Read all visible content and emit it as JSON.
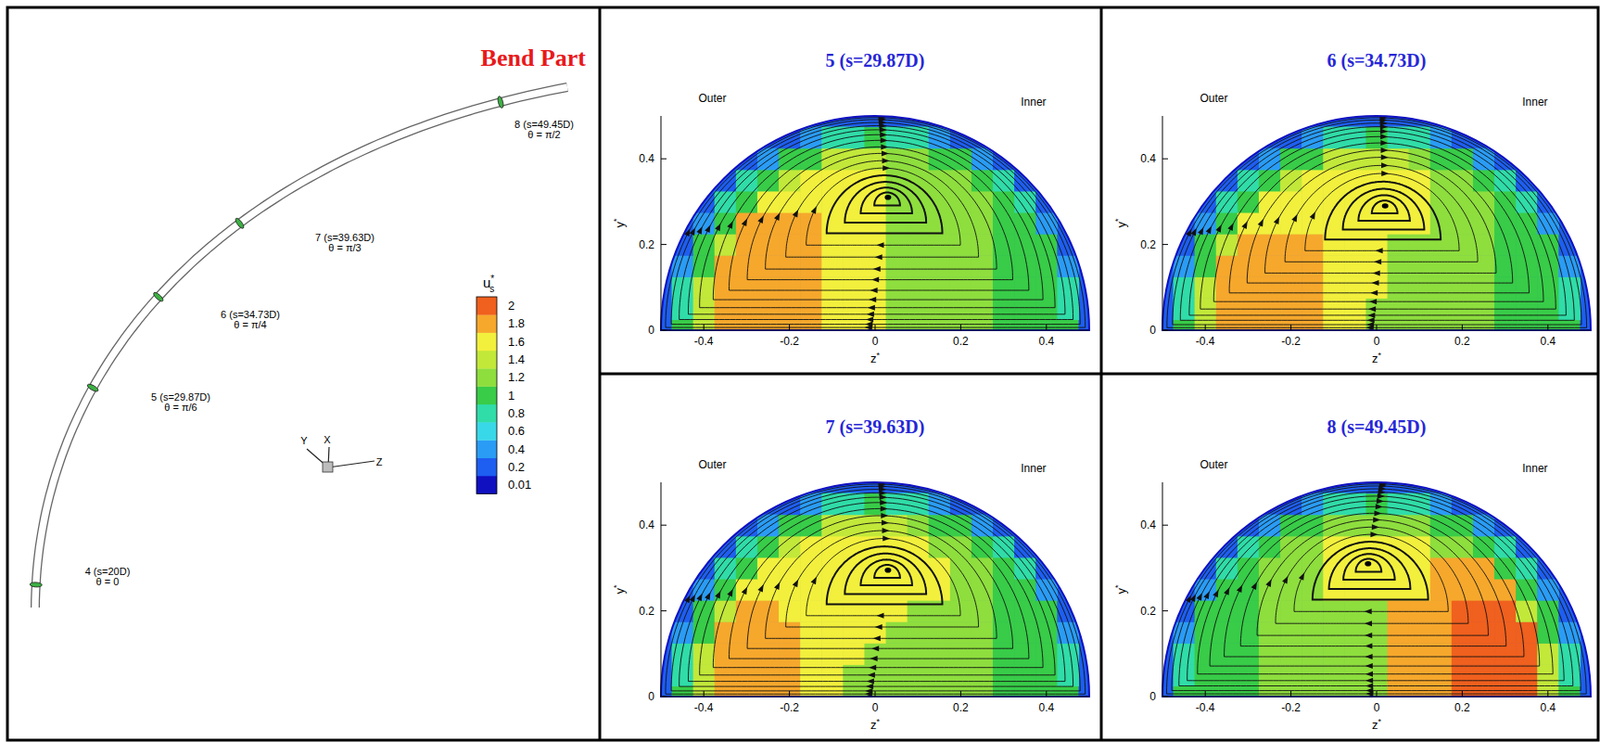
{
  "bend_diagram": {
    "title": "Bend Part",
    "stations": [
      {
        "label": "4 (s=20D)",
        "angle": "θ = 0"
      },
      {
        "label": "5 (s=29.87D)",
        "angle": "θ = π/6"
      },
      {
        "label": "6 (s=34.73D)",
        "angle": "θ = π/4"
      },
      {
        "label": "7 (s=39.63D)",
        "angle": "θ = π/3"
      },
      {
        "label": "8 (s=49.45D)",
        "angle": "θ = π/2"
      }
    ],
    "axis_labels": [
      "Y",
      "X",
      "Z"
    ]
  },
  "colorbar": {
    "title": "u*s",
    "levels": [
      0.01,
      0.2,
      0.4,
      0.6,
      0.8,
      1,
      1.2,
      1.4,
      1.6,
      1.8,
      2
    ],
    "colors": [
      "#1010c0",
      "#1e5ef0",
      "#2a9cf5",
      "#38d8e8",
      "#30dca8",
      "#38cc48",
      "#8ede3e",
      "#c2e83a",
      "#f2f03c",
      "#f6a82c",
      "#f0601e"
    ]
  },
  "chart_data": [
    {
      "type": "contour",
      "title": "5 (s=29.87D)",
      "xlabel": "z*",
      "ylabel": "y*",
      "annotations": [
        "Outer",
        "Inner"
      ],
      "xlim": [
        -0.5,
        0.5
      ],
      "ylim": [
        0,
        0.5
      ],
      "xticks": [
        -0.4,
        -0.2,
        0,
        0.2,
        0.4
      ],
      "yticks": [
        0,
        0.2,
        0.4
      ],
      "vortex_center": {
        "z": 0.03,
        "y": 0.31
      },
      "x": [
        -0.5,
        -0.45,
        -0.4,
        -0.35,
        -0.3,
        -0.25,
        -0.2,
        -0.15,
        -0.1,
        -0.05,
        0,
        0.05,
        0.1,
        0.15,
        0.2,
        0.25,
        0.3,
        0.35,
        0.4,
        0.45,
        0.5
      ],
      "y": [
        0,
        0.05,
        0.1,
        0.15,
        0.2,
        0.25,
        0.3,
        0.35,
        0.4,
        0.45,
        0.5
      ],
      "cells": [
        [
          0.2,
          1.1,
          1.4,
          1.8,
          1.8,
          1.8,
          1.8,
          1.8,
          1.6,
          1.6,
          1.6,
          1.3,
          1.3,
          1.3,
          1.3,
          1.3,
          1.1,
          1.1,
          1.1,
          1.1,
          0.2
        ],
        [
          null,
          0.8,
          1.4,
          1.8,
          1.8,
          1.8,
          1.8,
          1.8,
          1.6,
          1.6,
          1.6,
          1.3,
          1.3,
          1.3,
          1.3,
          1.3,
          1.1,
          1.1,
          1.1,
          0.8,
          null
        ],
        [
          null,
          0.8,
          1.4,
          1.8,
          1.8,
          1.8,
          1.8,
          1.8,
          1.6,
          1.6,
          1.6,
          1.3,
          1.3,
          1.3,
          1.3,
          1.3,
          1.1,
          1.1,
          1.1,
          0.8,
          null
        ],
        [
          null,
          0.5,
          1.1,
          1.8,
          1.8,
          1.8,
          1.8,
          1.8,
          1.6,
          1.6,
          1.6,
          1.3,
          1.3,
          1.3,
          1.3,
          1.3,
          1.1,
          1.1,
          1.1,
          0.5,
          null
        ],
        [
          null,
          0.2,
          1.1,
          1.4,
          1.8,
          1.8,
          1.8,
          1.8,
          1.6,
          1.6,
          1.6,
          1.3,
          1.3,
          1.3,
          1.3,
          1.3,
          1.1,
          1.1,
          1.1,
          0.2,
          null
        ],
        [
          null,
          null,
          0.5,
          1.1,
          1.8,
          1.8,
          1.8,
          1.8,
          1.6,
          1.6,
          1.6,
          1.3,
          1.3,
          1.3,
          1.3,
          1.3,
          1.1,
          1.1,
          0.5,
          null,
          null
        ],
        [
          null,
          null,
          0.2,
          0.8,
          1.1,
          1.6,
          1.6,
          1.6,
          1.6,
          1.6,
          1.6,
          1.3,
          1.3,
          1.3,
          1.3,
          1.3,
          1.1,
          0.8,
          0.2,
          null,
          null
        ],
        [
          null,
          null,
          null,
          0.2,
          0.8,
          1.1,
          1.4,
          1.6,
          1.6,
          1.6,
          1.6,
          1.3,
          1.3,
          1.3,
          1.3,
          1.1,
          0.8,
          0.2,
          null,
          null,
          null
        ],
        [
          null,
          null,
          null,
          null,
          0.2,
          0.5,
          1.1,
          1.1,
          1.4,
          1.4,
          1.4,
          1.3,
          1.3,
          1.1,
          1.1,
          0.5,
          0.2,
          null,
          null,
          null,
          null
        ],
        [
          null,
          null,
          null,
          null,
          null,
          null,
          0.2,
          0.5,
          0.8,
          0.8,
          1.1,
          0.8,
          0.8,
          0.5,
          0.2,
          null,
          null,
          null,
          null,
          null,
          null
        ],
        [
          null,
          null,
          null,
          null,
          null,
          null,
          null,
          null,
          null,
          null,
          0.2,
          null,
          null,
          null,
          null,
          null,
          null,
          null,
          null,
          null,
          null
        ]
      ]
    },
    {
      "type": "contour",
      "title": "6 (s=34.73D)",
      "xlabel": "z*",
      "ylabel": "y*",
      "annotations": [
        "Outer",
        "Inner"
      ],
      "xlim": [
        -0.5,
        0.5
      ],
      "ylim": [
        0,
        0.5
      ],
      "xticks": [
        -0.4,
        -0.2,
        0,
        0.2,
        0.4
      ],
      "yticks": [
        0,
        0.2,
        0.4
      ],
      "vortex_center": {
        "z": 0.02,
        "y": 0.29
      },
      "x": [
        -0.5,
        -0.45,
        -0.4,
        -0.35,
        -0.3,
        -0.25,
        -0.2,
        -0.15,
        -0.1,
        -0.05,
        0,
        0.05,
        0.1,
        0.15,
        0.2,
        0.25,
        0.3,
        0.35,
        0.4,
        0.45,
        0.5
      ],
      "y": [
        0,
        0.05,
        0.1,
        0.15,
        0.2,
        0.25,
        0.3,
        0.35,
        0.4,
        0.45,
        0.5
      ],
      "cells": [
        [
          0.2,
          1.1,
          1.4,
          1.8,
          1.8,
          1.8,
          1.8,
          1.8,
          1.6,
          1.6,
          1.3,
          1.3,
          1.3,
          1.3,
          1.3,
          1.3,
          1.1,
          1.1,
          1.1,
          1.1,
          0.2
        ],
        [
          null,
          0.8,
          1.4,
          1.8,
          1.8,
          1.8,
          1.8,
          1.8,
          1.6,
          1.6,
          1.3,
          1.3,
          1.3,
          1.3,
          1.3,
          1.3,
          1.1,
          1.1,
          1.1,
          0.8,
          null
        ],
        [
          null,
          0.8,
          1.4,
          1.8,
          1.8,
          1.8,
          1.8,
          1.8,
          1.6,
          1.6,
          1.6,
          1.3,
          1.3,
          1.3,
          1.3,
          1.3,
          1.1,
          1.1,
          1.1,
          0.8,
          null
        ],
        [
          null,
          0.5,
          1.1,
          1.8,
          1.8,
          1.8,
          1.8,
          1.8,
          1.6,
          1.6,
          1.6,
          1.3,
          1.3,
          1.3,
          1.3,
          1.3,
          1.1,
          1.1,
          1.1,
          0.5,
          null
        ],
        [
          null,
          0.2,
          1.1,
          1.4,
          1.8,
          1.8,
          1.8,
          1.8,
          1.6,
          1.6,
          1.6,
          1.3,
          1.3,
          1.3,
          1.3,
          1.3,
          1.1,
          1.1,
          1.1,
          0.2,
          null
        ],
        [
          null,
          null,
          0.5,
          1.1,
          1.6,
          1.6,
          1.6,
          1.6,
          1.6,
          1.6,
          1.6,
          1.6,
          1.6,
          1.3,
          1.3,
          1.3,
          1.1,
          1.1,
          0.5,
          null,
          null
        ],
        [
          null,
          null,
          0.2,
          0.8,
          1.1,
          1.6,
          1.6,
          1.6,
          1.6,
          1.6,
          1.6,
          1.6,
          1.6,
          1.3,
          1.3,
          1.3,
          1.1,
          0.8,
          0.2,
          null,
          null
        ],
        [
          null,
          null,
          null,
          0.2,
          0.8,
          1.1,
          1.4,
          1.6,
          1.6,
          1.6,
          1.6,
          1.6,
          1.6,
          1.3,
          1.3,
          1.1,
          0.8,
          0.2,
          null,
          null,
          null
        ],
        [
          null,
          null,
          null,
          null,
          0.2,
          0.5,
          1.1,
          1.1,
          1.4,
          1.4,
          1.4,
          1.4,
          1.3,
          1.1,
          1.1,
          0.5,
          0.2,
          null,
          null,
          null,
          null
        ],
        [
          null,
          null,
          null,
          null,
          null,
          null,
          0.2,
          0.5,
          0.8,
          0.8,
          1.1,
          0.8,
          0.8,
          0.5,
          0.2,
          null,
          null,
          null,
          null,
          null,
          null
        ],
        [
          null,
          null,
          null,
          null,
          null,
          null,
          null,
          null,
          null,
          null,
          0.2,
          null,
          null,
          null,
          null,
          null,
          null,
          null,
          null,
          null,
          null
        ]
      ]
    },
    {
      "type": "contour",
      "title": "7 (s=39.63D)",
      "xlabel": "z*",
      "ylabel": "y*",
      "annotations": [
        "Outer",
        "Inner"
      ],
      "xlim": [
        -0.5,
        0.5
      ],
      "ylim": [
        0,
        0.5
      ],
      "xticks": [
        -0.4,
        -0.2,
        0,
        0.2,
        0.4
      ],
      "yticks": [
        0,
        0.2,
        0.4
      ],
      "vortex_center": {
        "z": 0.03,
        "y": 0.295
      },
      "x": [
        -0.5,
        -0.45,
        -0.4,
        -0.35,
        -0.3,
        -0.25,
        -0.2,
        -0.15,
        -0.1,
        -0.05,
        0,
        0.05,
        0.1,
        0.15,
        0.2,
        0.25,
        0.3,
        0.35,
        0.4,
        0.45,
        0.5
      ],
      "y": [
        0,
        0.05,
        0.1,
        0.15,
        0.2,
        0.25,
        0.3,
        0.35,
        0.4,
        0.45,
        0.5
      ],
      "cells": [
        [
          0.2,
          1.1,
          1.4,
          1.8,
          1.8,
          1.8,
          1.8,
          1.6,
          1.6,
          1.3,
          1.3,
          1.3,
          1.3,
          1.3,
          1.3,
          1.3,
          1.1,
          1.1,
          1.1,
          1.1,
          0.2
        ],
        [
          null,
          0.8,
          1.4,
          1.8,
          1.8,
          1.8,
          1.8,
          1.6,
          1.6,
          1.3,
          1.3,
          1.3,
          1.3,
          1.3,
          1.3,
          1.3,
          1.1,
          1.1,
          1.1,
          0.8,
          null
        ],
        [
          null,
          0.8,
          1.4,
          1.8,
          1.8,
          1.8,
          1.8,
          1.6,
          1.6,
          1.6,
          1.3,
          1.3,
          1.3,
          1.3,
          1.3,
          1.3,
          1.1,
          1.1,
          1.1,
          0.8,
          null
        ],
        [
          null,
          0.5,
          1.1,
          1.8,
          1.8,
          1.8,
          1.8,
          1.6,
          1.6,
          1.6,
          1.6,
          1.3,
          1.3,
          1.3,
          1.3,
          1.3,
          1.1,
          1.1,
          1.1,
          0.5,
          null
        ],
        [
          null,
          0.2,
          1.1,
          1.4,
          1.8,
          1.8,
          1.6,
          1.6,
          1.6,
          1.6,
          1.6,
          1.6,
          1.3,
          1.3,
          1.3,
          1.3,
          1.1,
          1.1,
          1.1,
          0.2,
          null
        ],
        [
          null,
          null,
          0.5,
          1.1,
          1.6,
          1.6,
          1.6,
          1.6,
          1.6,
          1.6,
          1.6,
          1.6,
          1.6,
          1.6,
          1.3,
          1.3,
          1.1,
          1.1,
          0.5,
          null,
          null
        ],
        [
          null,
          null,
          0.2,
          0.8,
          1.1,
          1.6,
          1.6,
          1.6,
          1.6,
          1.6,
          1.6,
          1.6,
          1.6,
          1.6,
          1.3,
          1.3,
          1.1,
          0.8,
          0.2,
          null,
          null
        ],
        [
          null,
          null,
          null,
          0.2,
          0.8,
          1.1,
          1.4,
          1.6,
          1.6,
          1.6,
          1.6,
          1.6,
          1.6,
          1.3,
          1.3,
          1.1,
          0.8,
          0.2,
          null,
          null,
          null
        ],
        [
          null,
          null,
          null,
          null,
          0.2,
          0.5,
          1.1,
          1.1,
          1.4,
          1.4,
          1.4,
          1.4,
          1.3,
          1.1,
          1.1,
          0.5,
          0.2,
          null,
          null,
          null,
          null
        ],
        [
          null,
          null,
          null,
          null,
          null,
          null,
          0.2,
          0.5,
          0.8,
          0.8,
          1.1,
          0.8,
          0.8,
          0.5,
          0.2,
          null,
          null,
          null,
          null,
          null,
          null
        ],
        [
          null,
          null,
          null,
          null,
          null,
          null,
          null,
          null,
          null,
          null,
          0.2,
          null,
          null,
          null,
          null,
          null,
          null,
          null,
          null,
          null,
          null
        ]
      ]
    },
    {
      "type": "contour",
      "title": "8 (s=49.45D)",
      "xlabel": "z*",
      "ylabel": "y*",
      "annotations": [
        "Outer",
        "Inner"
      ],
      "xlim": [
        -0.5,
        0.5
      ],
      "ylim": [
        0,
        0.5
      ],
      "xticks": [
        -0.4,
        -0.2,
        0,
        0.2,
        0.4
      ],
      "yticks": [
        0,
        0.2,
        0.4
      ],
      "vortex_center": {
        "z": -0.02,
        "y": 0.31
      },
      "x": [
        -0.5,
        -0.45,
        -0.4,
        -0.35,
        -0.3,
        -0.25,
        -0.2,
        -0.15,
        -0.1,
        -0.05,
        0,
        0.05,
        0.1,
        0.15,
        0.2,
        0.25,
        0.3,
        0.35,
        0.4,
        0.45,
        0.5
      ],
      "y": [
        0,
        0.05,
        0.1,
        0.15,
        0.2,
        0.25,
        0.3,
        0.35,
        0.4,
        0.45,
        0.5
      ],
      "cells": [
        [
          0.2,
          1.1,
          1.1,
          1.1,
          1.1,
          1.3,
          1.3,
          1.3,
          1.3,
          1.3,
          1.3,
          1.8,
          1.8,
          1.8,
          2,
          2,
          2,
          2,
          1.4,
          1.1,
          0.2
        ],
        [
          null,
          0.8,
          1.1,
          1.1,
          1.1,
          1.3,
          1.3,
          1.3,
          1.3,
          1.3,
          1.3,
          1.8,
          1.8,
          1.8,
          2,
          2,
          2,
          2,
          1.4,
          0.8,
          null
        ],
        [
          null,
          0.8,
          1.1,
          1.1,
          1.1,
          1.3,
          1.3,
          1.3,
          1.3,
          1.3,
          1.3,
          1.8,
          1.8,
          1.8,
          2,
          2,
          2,
          2,
          1.4,
          0.8,
          null
        ],
        [
          null,
          0.5,
          1.1,
          1.1,
          1.1,
          1.3,
          1.3,
          1.3,
          1.3,
          1.3,
          1.3,
          1.8,
          1.8,
          1.8,
          2,
          2,
          2,
          2,
          1.1,
          0.5,
          null
        ],
        [
          null,
          0.2,
          1.1,
          1.1,
          1.1,
          1.3,
          1.3,
          1.3,
          1.3,
          1.3,
          1.3,
          1.8,
          1.8,
          1.8,
          2,
          2,
          2,
          1.4,
          1.1,
          0.2,
          null
        ],
        [
          null,
          null,
          0.5,
          1.1,
          1.1,
          1.3,
          1.3,
          1.3,
          1.6,
          1.6,
          1.6,
          1.6,
          1.6,
          1.8,
          1.8,
          1.8,
          1.8,
          1.1,
          0.5,
          null,
          null
        ],
        [
          null,
          null,
          0.2,
          0.8,
          1.1,
          1.3,
          1.3,
          1.3,
          1.6,
          1.6,
          1.6,
          1.6,
          1.6,
          1.8,
          1.8,
          1.8,
          1.1,
          0.8,
          0.2,
          null,
          null
        ],
        [
          null,
          null,
          null,
          0.2,
          0.8,
          1.1,
          1.3,
          1.3,
          1.6,
          1.6,
          1.6,
          1.6,
          1.6,
          1.3,
          1.3,
          1.1,
          0.8,
          0.2,
          null,
          null,
          null
        ],
        [
          null,
          null,
          null,
          null,
          0.2,
          0.5,
          1.1,
          1.1,
          1.3,
          1.3,
          1.3,
          1.3,
          1.3,
          1.1,
          1.1,
          0.5,
          0.2,
          null,
          null,
          null,
          null
        ],
        [
          null,
          null,
          null,
          null,
          null,
          null,
          0.2,
          0.5,
          0.8,
          0.8,
          1.1,
          0.8,
          0.8,
          0.5,
          0.2,
          null,
          null,
          null,
          null,
          null,
          null
        ],
        [
          null,
          null,
          null,
          null,
          null,
          null,
          null,
          null,
          null,
          null,
          0.2,
          null,
          null,
          null,
          null,
          null,
          null,
          null,
          null,
          null,
          null
        ]
      ]
    }
  ]
}
